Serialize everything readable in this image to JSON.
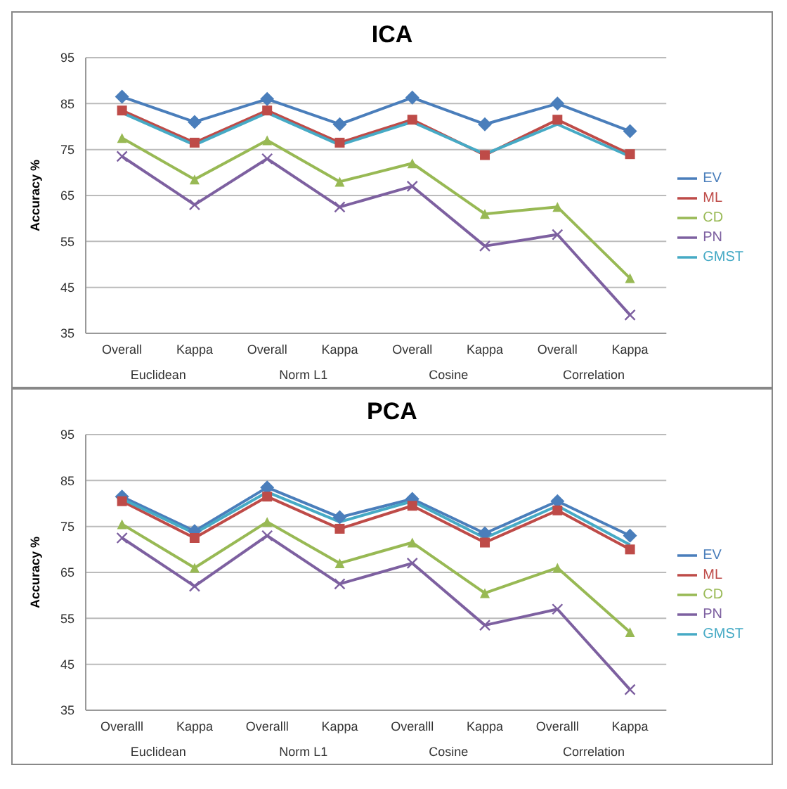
{
  "chart_data": [
    {
      "type": "line",
      "title": "ICA",
      "ylabel": "Accuracy %",
      "categories": [
        "Overall",
        "Kappa",
        "Overall",
        "Kappa",
        "Overall",
        "Kappa",
        "Overall",
        "Kappa"
      ],
      "annotations": [
        "Euclidean",
        "Norm L1",
        "Cosine",
        "Correlation"
      ],
      "ylim": [
        35,
        95
      ],
      "yticks": [
        35,
        45,
        55,
        65,
        75,
        85,
        95
      ],
      "grid": "y",
      "legend": "right",
      "series": [
        {
          "name": "EV",
          "color": "#4a7ebb",
          "marker": "diamond",
          "values": [
            86.5,
            81,
            86,
            80.5,
            86.3,
            80.5,
            85,
            79
          ]
        },
        {
          "name": "ML",
          "color": "#be4b48",
          "marker": "square",
          "values": [
            83.5,
            76.5,
            83.5,
            76.5,
            81.5,
            73.8,
            81.5,
            74
          ]
        },
        {
          "name": "CD",
          "color": "#98b954",
          "marker": "triangle",
          "values": [
            77.5,
            68.5,
            77,
            68,
            72,
            61,
            62.5,
            47
          ]
        },
        {
          "name": "PN",
          "color": "#7d60a0",
          "marker": "cross",
          "values": [
            73.5,
            63,
            73,
            62.5,
            67,
            54,
            56.5,
            39
          ]
        },
        {
          "name": "GMST",
          "color": "#46aac5",
          "marker": "none",
          "values": [
            83,
            76,
            83,
            76,
            81,
            74,
            80.5,
            73.5
          ]
        }
      ]
    },
    {
      "type": "line",
      "title": "PCA",
      "ylabel": "Accuracy %",
      "categories": [
        "Overalll",
        "Kappa",
        "Overalll",
        "Kappa",
        "Overalll",
        "Kappa",
        "Overalll",
        "Kappa"
      ],
      "annotations": [
        "Euclidean",
        "Norm L1",
        "Cosine",
        "Correlation"
      ],
      "ylim": [
        35,
        95
      ],
      "yticks": [
        35,
        45,
        55,
        65,
        75,
        85,
        95
      ],
      "grid": "y",
      "legend": "right",
      "series": [
        {
          "name": "EV",
          "color": "#4a7ebb",
          "marker": "diamond",
          "values": [
            81.5,
            74,
            83.5,
            77,
            81,
            73.5,
            80.5,
            73
          ]
        },
        {
          "name": "ML",
          "color": "#be4b48",
          "marker": "square",
          "values": [
            80.5,
            72.5,
            81.5,
            74.5,
            79.5,
            71.5,
            78.5,
            70
          ]
        },
        {
          "name": "CD",
          "color": "#98b954",
          "marker": "triangle",
          "values": [
            75.5,
            66,
            76,
            67,
            71.5,
            60.5,
            66,
            52
          ]
        },
        {
          "name": "PN",
          "color": "#7d60a0",
          "marker": "cross",
          "values": [
            72.5,
            62,
            73,
            62.5,
            67,
            53.5,
            57,
            39.5
          ]
        },
        {
          "name": "GMST",
          "color": "#46aac5",
          "marker": "none",
          "values": [
            81,
            73.5,
            82.5,
            76,
            80.5,
            72.5,
            79.5,
            71
          ]
        }
      ]
    }
  ]
}
